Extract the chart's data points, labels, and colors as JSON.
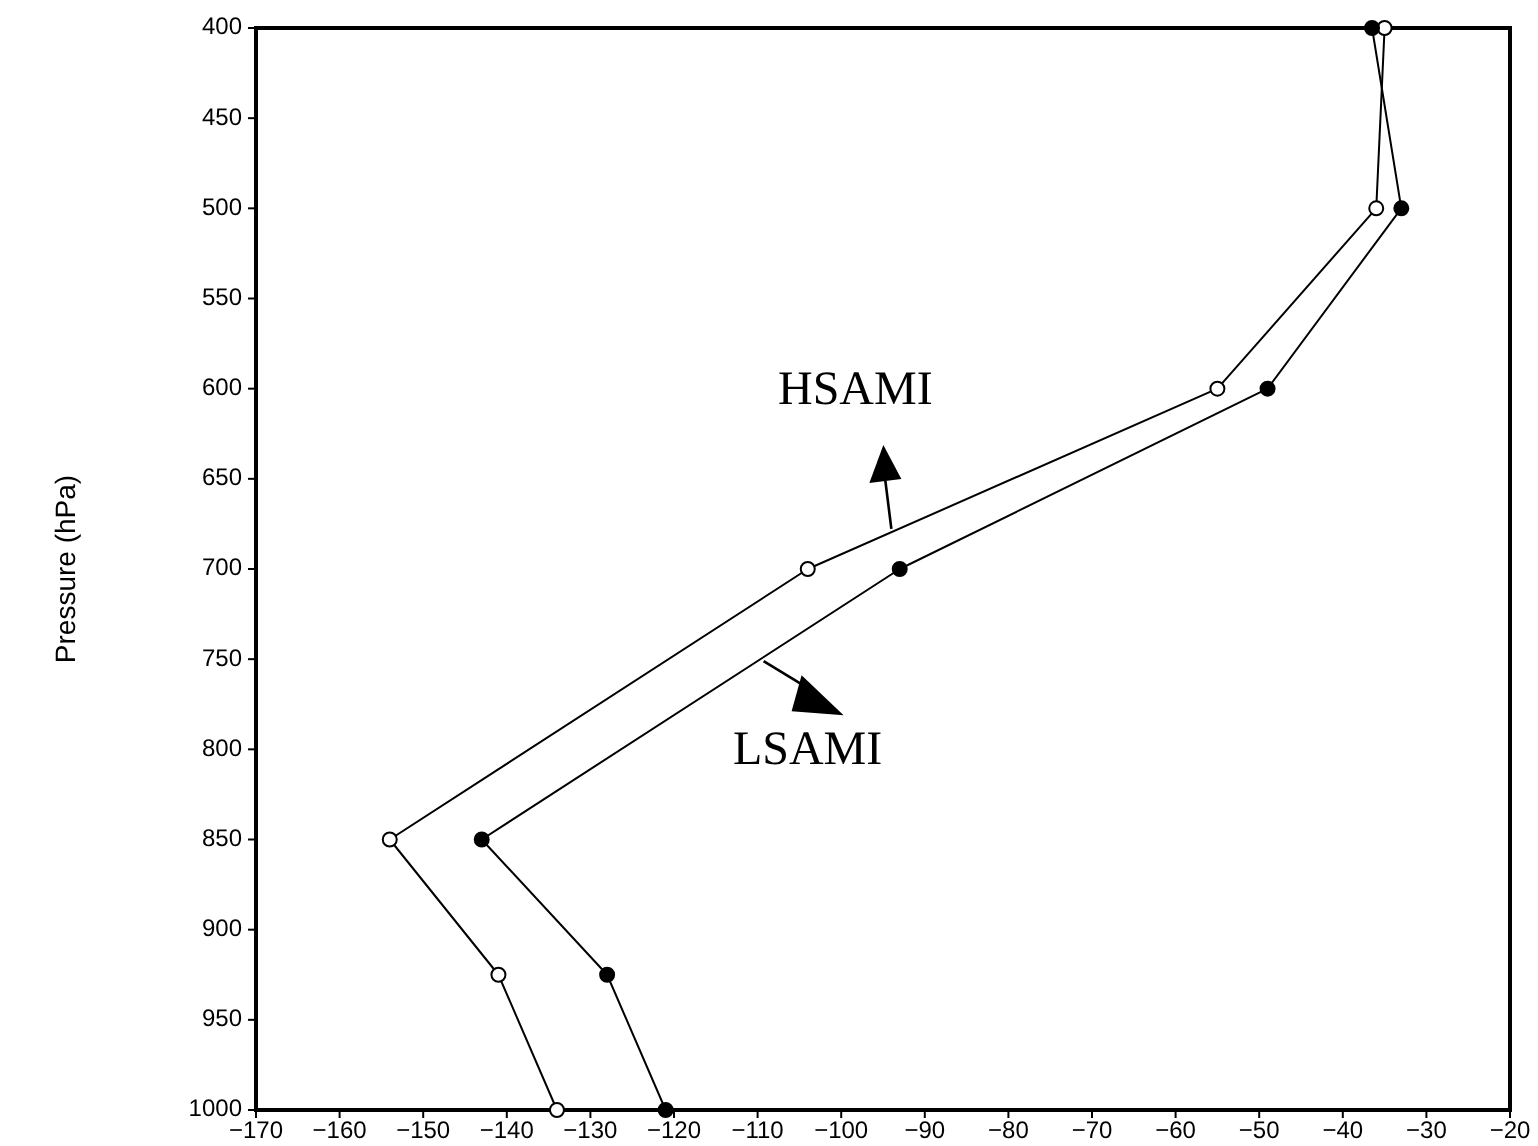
{
  "chart_data": {
    "type": "line",
    "ylabel": "Pressure (hPa)",
    "marker": "circle",
    "line_style": "solid",
    "grid": false,
    "xlim": [
      -170,
      -20
    ],
    "xticks": [
      -170,
      -160,
      -150,
      -140,
      -130,
      -120,
      -110,
      -100,
      -90,
      -80,
      -70,
      -60,
      -50,
      -40,
      -30,
      -20
    ],
    "ylim": [
      1000,
      400
    ],
    "yticks": [
      400,
      450,
      500,
      550,
      600,
      650,
      700,
      750,
      800,
      850,
      900,
      950,
      1000
    ],
    "annotations": [
      {
        "text": "HSAMI",
        "x": -94,
        "y": 680
      },
      {
        "text": "LSAMI",
        "x": -110,
        "y": 750
      }
    ],
    "series": [
      {
        "color": "#000000",
        "x": [
          -35,
          -36,
          -55,
          -104,
          -154,
          -141,
          -134
        ],
        "values": [
          400,
          500,
          600,
          700,
          850,
          925,
          1000
        ]
      },
      {
        "color": "#000000",
        "x": [
          -36.5,
          -33,
          -49,
          -93,
          -143,
          -128,
          -121
        ],
        "values": [
          400,
          500,
          600,
          700,
          850,
          925,
          1000
        ]
      }
    ]
  }
}
